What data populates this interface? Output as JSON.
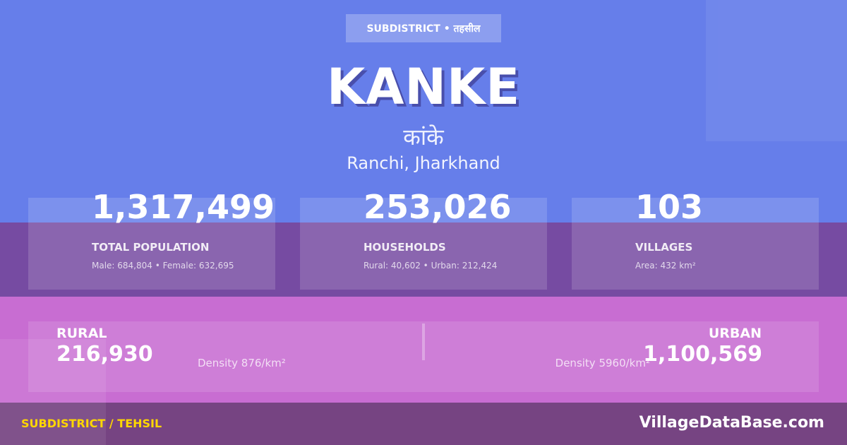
{
  "header": {
    "badge": "SUBDISTRICT • तहसील",
    "title": "KANKE",
    "title_hindi": "कांके",
    "location": "Ranchi, Jharkhand"
  },
  "stats": [
    {
      "value": "1,317,499",
      "label": "TOTAL POPULATION",
      "sub": "Male: 684,804 • Female: 632,695"
    },
    {
      "value": "253,026",
      "label": "HOUSEHOLDS",
      "sub": "Rural: 40,602 • Urban: 212,424"
    },
    {
      "value": "103",
      "label": "VILLAGES",
      "sub": "Area: 432 km²"
    }
  ],
  "split": {
    "rural": {
      "label": "RURAL",
      "value": "216,930",
      "density": "Density 876/km²"
    },
    "urban": {
      "label": "URBAN",
      "value": "1,100,569",
      "density": "Density 5960/km²"
    }
  },
  "footer": {
    "type": "SUBDISTRICT / TEHSIL",
    "brand": "VillageDataBase.com"
  },
  "colors": {
    "blue": "#667eea",
    "purple": "#764ba2",
    "pink": "#c86dd2",
    "accent": "#ffd700"
  }
}
